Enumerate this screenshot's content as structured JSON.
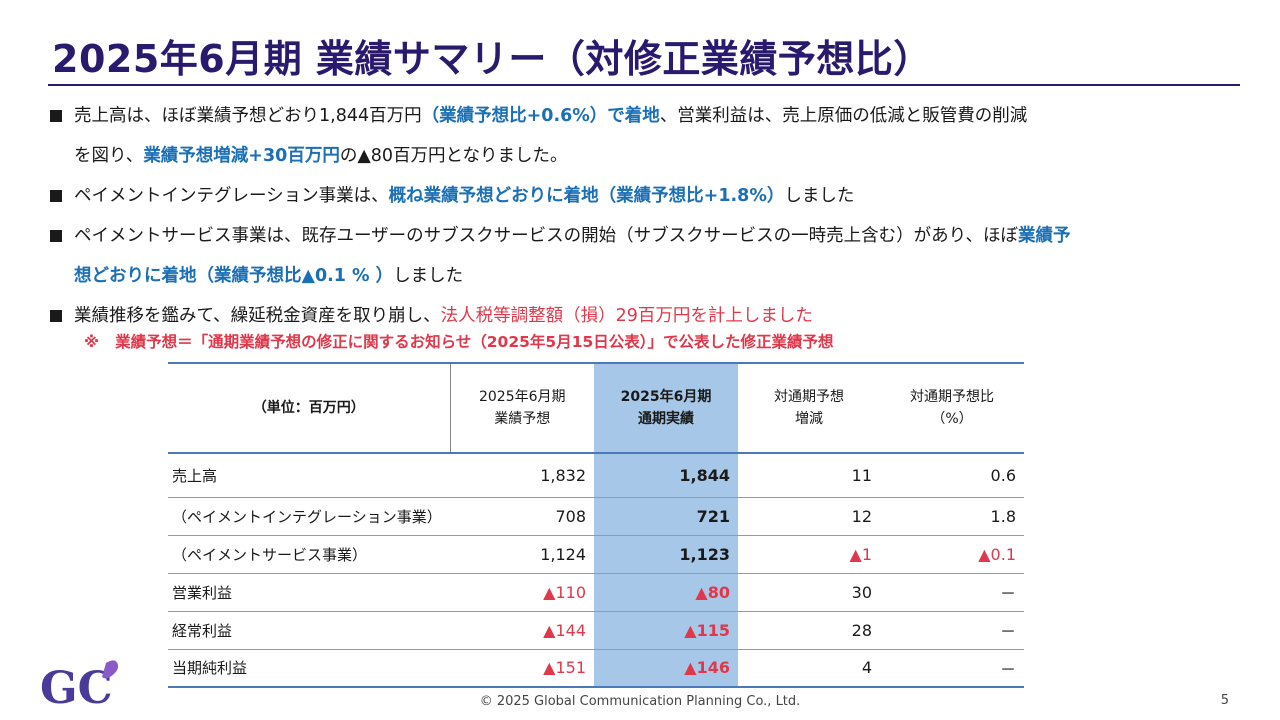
{
  "title": "2025年6月期 業績サマリー（対修正業績予想比）",
  "bullets": [
    {
      "lines": [
        [
          {
            "t": "売上高は、ほぼ業績予想どおり1,844百万円",
            "s": ""
          },
          {
            "t": "（業績予想比+0.6%）で着地",
            "s": "hl"
          },
          {
            "t": "、営業利益は、売上原価の低減と販管費の削減",
            "s": ""
          }
        ],
        [
          {
            "t": "を図り、",
            "s": ""
          },
          {
            "t": "業績予想増減+30百万円",
            "s": "hl"
          },
          {
            "t": "の▲80百万円となりました。",
            "s": ""
          }
        ]
      ]
    },
    {
      "lines": [
        [
          {
            "t": "ペイメントインテグレーション事業は、",
            "s": ""
          },
          {
            "t": "概ね業績予想どおりに着地（業績予想比+1.8%）",
            "s": "hl"
          },
          {
            "t": "しました",
            "s": ""
          }
        ]
      ]
    },
    {
      "lines": [
        [
          {
            "t": "ペイメントサービス事業は、既存ユーザーのサブスクサービスの開始（サブスクサービスの一時売上含む）があり、ほぼ",
            "s": ""
          },
          {
            "t": "業績予",
            "s": "hl"
          }
        ],
        [
          {
            "t": "想どおりに着地（業績予想比▲0.1 % ）",
            "s": "hl"
          },
          {
            "t": "しました",
            "s": ""
          }
        ]
      ]
    },
    {
      "lines": [
        [
          {
            "t": "業績推移を鑑みて、繰延税金資産を取り崩し、",
            "s": ""
          },
          {
            "t": "法人税等調整額（損）29百万円を計上しました",
            "s": "red"
          }
        ]
      ]
    }
  ],
  "note": {
    "mark": "※",
    "text": "業績予想＝「通期業績予想の修正に関するお知らせ（2025年5月15日公表）」で公表した修正業績予想"
  },
  "table": {
    "unit_label": "（単位：百万円）",
    "columns": [
      {
        "l1": "2025年6月期",
        "l2": "業績予想"
      },
      {
        "l1": "2025年6月期",
        "l2": "通期実績"
      },
      {
        "l1": "対通期予想",
        "l2": "増減"
      },
      {
        "l1": "対通期予想比",
        "l2": "（%）"
      }
    ],
    "rows": [
      {
        "label": "売上高",
        "vals": [
          "1,832",
          "1,844",
          "11",
          "0.6"
        ],
        "neg": [
          false,
          false,
          false,
          false
        ]
      },
      {
        "label": "（ペイメントインテグレーション事業）",
        "vals": [
          "708",
          "721",
          "12",
          "1.8"
        ],
        "neg": [
          false,
          false,
          false,
          false
        ]
      },
      {
        "label": "（ペイメントサービス事業）",
        "vals": [
          "1,124",
          "1,123",
          "▲1",
          "▲0.1"
        ],
        "neg": [
          false,
          false,
          true,
          true
        ]
      },
      {
        "label": "営業利益",
        "vals": [
          "▲110",
          "▲80",
          "30",
          "－"
        ],
        "neg": [
          true,
          true,
          false,
          false
        ]
      },
      {
        "label": "経常利益",
        "vals": [
          "▲144",
          "▲115",
          "28",
          "－"
        ],
        "neg": [
          true,
          true,
          false,
          false
        ]
      },
      {
        "label": "当期純利益",
        "vals": [
          "▲151",
          "▲146",
          "4",
          "－"
        ],
        "neg": [
          true,
          true,
          false,
          false
        ]
      }
    ]
  },
  "colors": {
    "title": "#2a1a6e",
    "highlight_blue": "#1b6fb5",
    "negative_red": "#e0384a",
    "table_highlight": "#a7c7e8",
    "table_rule": "#4a7bb8"
  },
  "logo": {
    "text": "GC",
    "icon": "gc-logo"
  },
  "footer": {
    "copyright": "© 2025 Global Communication Planning Co., Ltd.",
    "page": "5"
  }
}
